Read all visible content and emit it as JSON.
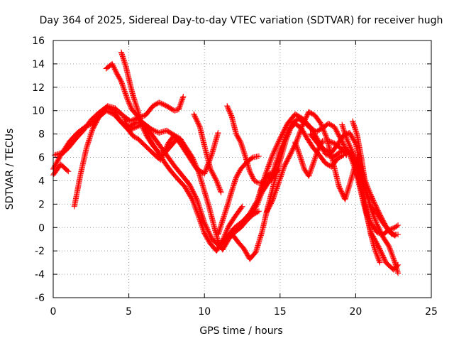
{
  "chart_data": {
    "type": "scatter",
    "title": "Day 364 of 2025, Sidereal Day-to-day VTEC variation (SDTVAR) for receiver hugh",
    "xlabel": "GPS time / hours",
    "ylabel": "SDTVAR / TECUs",
    "xlim": [
      0,
      25
    ],
    "ylim": [
      -6,
      16
    ],
    "xticks": [
      0,
      5,
      10,
      15,
      20,
      25
    ],
    "yticks": [
      -6,
      -4,
      -2,
      0,
      2,
      4,
      6,
      8,
      10,
      12,
      14,
      16
    ],
    "grid": true,
    "marker": "+",
    "color": "#ff0000",
    "series": [
      {
        "points": [
          [
            0.0,
            5.0
          ],
          [
            0.5,
            6.2
          ],
          [
            1.0,
            6.8
          ],
          [
            1.5,
            7.6
          ],
          [
            2.0,
            8.3
          ],
          [
            2.5,
            9.2
          ],
          [
            3.0,
            9.8
          ],
          [
            3.5,
            10.3
          ],
          [
            4.0,
            10.0
          ],
          [
            4.5,
            9.0
          ],
          [
            5.0,
            8.3
          ],
          [
            5.5,
            8.6
          ],
          [
            6.0,
            8.9
          ],
          [
            6.5,
            8.0
          ],
          [
            7.0,
            7.1
          ],
          [
            7.5,
            6.2
          ],
          [
            8.0,
            5.3
          ],
          [
            8.5,
            4.5
          ],
          [
            9.0,
            3.7
          ],
          [
            9.5,
            2.4
          ],
          [
            10.0,
            0.4
          ],
          [
            10.5,
            -1.0
          ],
          [
            11.0,
            -1.6
          ],
          [
            11.5,
            -0.8
          ],
          [
            12.0,
            0.0
          ],
          [
            12.5,
            0.5
          ],
          [
            13.0,
            1.2
          ],
          [
            13.5,
            2.3
          ],
          [
            14.0,
            4.4
          ],
          [
            14.5,
            6.2
          ],
          [
            15.0,
            7.6
          ],
          [
            15.5,
            8.9
          ],
          [
            16.0,
            9.7
          ],
          [
            16.5,
            9.3
          ],
          [
            17.0,
            8.6
          ],
          [
            17.5,
            7.5
          ],
          [
            18.0,
            6.3
          ],
          [
            18.5,
            6.0
          ],
          [
            19.0,
            6.5
          ],
          [
            19.5,
            6.6
          ],
          [
            20.0,
            4.9
          ],
          [
            20.5,
            2.2
          ],
          [
            21.0,
            -0.4
          ],
          [
            21.5,
            -1.6
          ],
          [
            22.0,
            -3.0
          ],
          [
            22.5,
            -3.6
          ],
          [
            22.8,
            -3.2
          ]
        ]
      },
      {
        "points": [
          [
            0.0,
            4.5
          ],
          [
            0.5,
            5.4
          ],
          [
            1.0,
            4.8
          ]
        ]
      },
      {
        "points": [
          [
            1.4,
            1.8
          ],
          [
            1.8,
            4.5
          ],
          [
            2.2,
            6.8
          ],
          [
            2.6,
            8.4
          ],
          [
            3.0,
            9.4
          ],
          [
            3.5,
            10.0
          ],
          [
            4.0,
            9.7
          ],
          [
            4.5,
            9.0
          ],
          [
            5.0,
            8.6
          ],
          [
            5.5,
            9.0
          ],
          [
            6.0,
            8.9
          ],
          [
            6.5,
            8.4
          ],
          [
            7.0,
            8.1
          ],
          [
            7.5,
            8.3
          ],
          [
            8.0,
            7.9
          ],
          [
            8.5,
            7.0
          ],
          [
            9.0,
            6.0
          ],
          [
            9.5,
            5.0
          ],
          [
            10.0,
            4.6
          ],
          [
            10.5,
            6.3
          ],
          [
            10.9,
            8.1
          ]
        ]
      },
      {
        "points": [
          [
            0.1,
            6.2
          ],
          [
            0.6,
            6.4
          ],
          [
            1.1,
            7.4
          ],
          [
            1.6,
            8.1
          ],
          [
            2.1,
            8.6
          ],
          [
            2.6,
            8.9
          ],
          [
            3.1,
            9.6
          ],
          [
            3.6,
            10.4
          ],
          [
            4.1,
            10.2
          ],
          [
            4.6,
            9.6
          ],
          [
            5.1,
            9.1
          ],
          [
            5.6,
            9.4
          ],
          [
            6.1,
            9.6
          ],
          [
            6.6,
            10.4
          ],
          [
            7.0,
            10.7
          ],
          [
            7.5,
            10.4
          ],
          [
            8.0,
            10.0
          ],
          [
            8.3,
            10.1
          ],
          [
            8.6,
            11.2
          ]
        ]
      },
      {
        "points": [
          [
            3.5,
            13.6
          ],
          [
            3.9,
            14.0
          ],
          [
            4.2,
            13.2
          ],
          [
            4.5,
            12.5
          ],
          [
            4.9,
            11.0
          ],
          [
            5.2,
            10.1
          ],
          [
            5.6,
            9.5
          ],
          [
            6.0,
            8.7
          ],
          [
            6.5,
            7.3
          ],
          [
            7.0,
            6.3
          ],
          [
            7.4,
            5.5
          ],
          [
            7.8,
            4.8
          ],
          [
            8.2,
            4.2
          ],
          [
            8.7,
            3.5
          ],
          [
            9.2,
            2.4
          ],
          [
            9.6,
            1.0
          ],
          [
            10.0,
            -0.5
          ],
          [
            10.4,
            -1.4
          ],
          [
            10.8,
            -2.0
          ],
          [
            11.2,
            -1.1
          ],
          [
            11.6,
            0.1
          ],
          [
            12.0,
            0.9
          ],
          [
            12.5,
            1.8
          ]
        ]
      },
      {
        "points": [
          [
            4.5,
            15.0
          ],
          [
            4.8,
            13.8
          ],
          [
            5.1,
            12.2
          ],
          [
            5.3,
            11.2
          ],
          [
            5.6,
            10.0
          ],
          [
            5.9,
            8.6
          ],
          [
            6.2,
            7.8
          ],
          [
            6.6,
            7.0
          ],
          [
            7.0,
            6.4
          ],
          [
            7.4,
            6.4
          ],
          [
            7.8,
            7.0
          ],
          [
            8.2,
            7.6
          ]
        ]
      },
      {
        "points": [
          [
            4.7,
            9.4
          ],
          [
            5.0,
            8.3
          ],
          [
            5.3,
            7.8
          ],
          [
            5.6,
            7.6
          ],
          [
            6.0,
            7.1
          ],
          [
            6.4,
            6.6
          ],
          [
            6.8,
            6.1
          ],
          [
            7.1,
            5.8
          ]
        ]
      },
      {
        "points": [
          [
            7.2,
            6.0
          ],
          [
            7.6,
            7.2
          ],
          [
            8.0,
            7.9
          ],
          [
            8.4,
            7.6
          ],
          [
            8.8,
            6.8
          ],
          [
            9.2,
            6.0
          ],
          [
            9.6,
            4.8
          ],
          [
            10.0,
            3.1
          ],
          [
            10.3,
            1.8
          ],
          [
            10.6,
            0.3
          ],
          [
            10.9,
            -1.2
          ],
          [
            11.2,
            -1.9
          ],
          [
            11.6,
            -1.0
          ],
          [
            12.0,
            -0.4
          ],
          [
            12.4,
            0.0
          ],
          [
            12.8,
            0.6
          ],
          [
            13.2,
            1.1
          ],
          [
            13.6,
            1.4
          ]
        ]
      },
      {
        "points": [
          [
            9.3,
            9.7
          ],
          [
            9.7,
            8.6
          ],
          [
            10.0,
            7.0
          ],
          [
            10.4,
            5.0
          ],
          [
            10.8,
            4.0
          ],
          [
            11.1,
            3.0
          ]
        ]
      },
      {
        "points": [
          [
            11.5,
            10.4
          ],
          [
            11.8,
            9.5
          ],
          [
            12.1,
            8.0
          ],
          [
            12.4,
            7.3
          ],
          [
            12.7,
            6.1
          ],
          [
            13.0,
            4.8
          ],
          [
            13.3,
            4.0
          ],
          [
            13.6,
            3.8
          ],
          [
            14.0,
            3.9
          ],
          [
            14.4,
            4.0
          ],
          [
            14.8,
            5.0
          ]
        ]
      },
      {
        "points": [
          [
            10.9,
            -0.6
          ],
          [
            11.2,
            0.6
          ],
          [
            11.5,
            1.8
          ],
          [
            11.8,
            3.1
          ],
          [
            12.1,
            4.3
          ],
          [
            12.4,
            5.0
          ],
          [
            12.8,
            5.6
          ],
          [
            13.2,
            6.0
          ],
          [
            13.6,
            6.1
          ]
        ]
      },
      {
        "points": [
          [
            11.0,
            -1.6
          ],
          [
            11.4,
            -1.0
          ],
          [
            11.8,
            -0.5
          ],
          [
            12.2,
            -1.2
          ],
          [
            12.6,
            -1.8
          ],
          [
            13.0,
            -2.7
          ],
          [
            13.4,
            -2.1
          ],
          [
            13.8,
            -0.4
          ],
          [
            14.2,
            1.8
          ],
          [
            14.6,
            3.8
          ],
          [
            15.0,
            5.7
          ],
          [
            15.4,
            7.5
          ],
          [
            15.7,
            8.5
          ],
          [
            16.0,
            8.9
          ],
          [
            16.4,
            8.5
          ],
          [
            16.8,
            7.6
          ],
          [
            17.2,
            6.8
          ],
          [
            17.6,
            6.2
          ],
          [
            18.0,
            5.5
          ],
          [
            18.4,
            5.2
          ],
          [
            18.8,
            5.9
          ],
          [
            19.2,
            6.2
          ]
        ]
      },
      {
        "points": [
          [
            12.9,
            1.0
          ],
          [
            13.2,
            1.3
          ],
          [
            13.5,
            2.0
          ],
          [
            13.8,
            3.0
          ],
          [
            14.2,
            3.8
          ],
          [
            14.6,
            5.0
          ],
          [
            15.0,
            6.6
          ],
          [
            15.4,
            7.8
          ],
          [
            15.8,
            8.9
          ],
          [
            16.2,
            9.3
          ],
          [
            16.6,
            9.0
          ],
          [
            17.0,
            8.5
          ],
          [
            17.4,
            8.2
          ],
          [
            17.8,
            8.5
          ],
          [
            18.2,
            8.9
          ],
          [
            18.6,
            8.6
          ],
          [
            19.0,
            7.6
          ],
          [
            19.4,
            6.6
          ],
          [
            19.8,
            6.1
          ],
          [
            20.2,
            4.2
          ],
          [
            20.6,
            1.9
          ],
          [
            21.0,
            0.4
          ],
          [
            21.4,
            -0.4
          ],
          [
            21.8,
            -0.6
          ],
          [
            22.2,
            -0.2
          ],
          [
            22.6,
            0.0
          ],
          [
            22.8,
            0.2
          ]
        ]
      },
      {
        "points": [
          [
            14.1,
            1.3
          ],
          [
            14.5,
            2.3
          ],
          [
            14.9,
            3.8
          ],
          [
            15.3,
            5.3
          ],
          [
            15.7,
            6.3
          ],
          [
            16.1,
            7.4
          ],
          [
            16.5,
            8.8
          ],
          [
            16.9,
            9.9
          ],
          [
            17.3,
            9.6
          ],
          [
            17.7,
            8.9
          ],
          [
            18.1,
            7.6
          ],
          [
            18.5,
            5.6
          ],
          [
            18.9,
            3.5
          ],
          [
            19.3,
            2.4
          ],
          [
            19.7,
            4.1
          ],
          [
            20.1,
            6.0
          ],
          [
            20.4,
            4.0
          ],
          [
            20.7,
            1.4
          ],
          [
            21.0,
            -0.6
          ],
          [
            21.3,
            -2.0
          ],
          [
            21.6,
            -3.0
          ]
        ]
      },
      {
        "points": [
          [
            17.0,
            8.0
          ],
          [
            17.3,
            7.5
          ],
          [
            17.6,
            7.0
          ],
          [
            18.0,
            6.6
          ],
          [
            18.4,
            6.4
          ],
          [
            18.8,
            7.1
          ],
          [
            19.2,
            7.9
          ],
          [
            19.6,
            8.1
          ],
          [
            20.0,
            7.2
          ],
          [
            20.4,
            4.8
          ],
          [
            20.8,
            3.4
          ],
          [
            21.2,
            2.2
          ],
          [
            21.6,
            1.1
          ],
          [
            22.0,
            0.1
          ],
          [
            22.4,
            -0.6
          ],
          [
            22.8,
            -0.6
          ]
        ]
      },
      {
        "points": [
          [
            16.0,
            7.3
          ],
          [
            16.3,
            6.2
          ],
          [
            16.6,
            5.0
          ],
          [
            16.9,
            4.4
          ],
          [
            17.2,
            5.5
          ],
          [
            17.5,
            6.6
          ],
          [
            17.8,
            7.4
          ],
          [
            18.2,
            7.4
          ],
          [
            18.6,
            7.2
          ],
          [
            19.0,
            6.8
          ],
          [
            19.4,
            6.2
          ]
        ]
      },
      {
        "points": [
          [
            19.1,
            8.8
          ],
          [
            19.4,
            7.6
          ],
          [
            19.8,
            6.4
          ],
          [
            20.2,
            5.2
          ],
          [
            20.6,
            3.4
          ],
          [
            21.0,
            1.6
          ],
          [
            21.4,
            0.3
          ],
          [
            21.8,
            -0.8
          ],
          [
            22.2,
            -1.6
          ],
          [
            22.6,
            -3.0
          ],
          [
            22.8,
            -3.9
          ]
        ]
      },
      {
        "points": [
          [
            19.8,
            9.1
          ],
          [
            20.1,
            7.9
          ],
          [
            20.4,
            5.8
          ],
          [
            20.7,
            3.2
          ],
          [
            21.0,
            1.8
          ],
          [
            21.4,
            1.2
          ],
          [
            21.8,
            0.4
          ],
          [
            22.2,
            -0.3
          ],
          [
            22.6,
            -0.7
          ]
        ]
      },
      {
        "points": [
          [
            13.7,
            3.1
          ],
          [
            14.0,
            4.1
          ],
          [
            14.3,
            4.6
          ],
          [
            14.6,
            4.6
          ],
          [
            14.9,
            4.9
          ]
        ]
      }
    ]
  }
}
